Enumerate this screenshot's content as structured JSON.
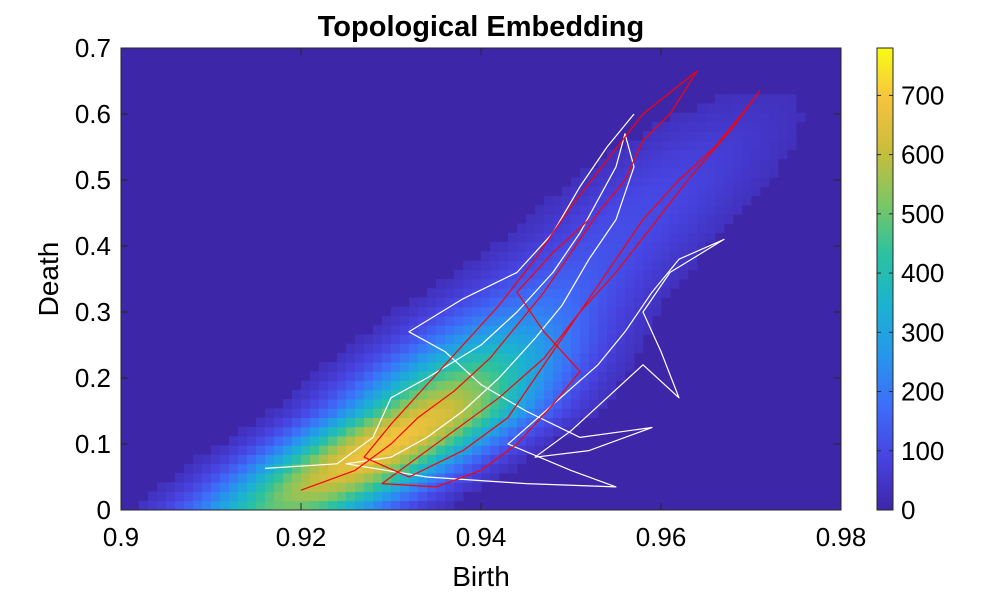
{
  "chart_data": {
    "type": "heatmap",
    "title": "Topological Embedding",
    "xlabel": "Birth",
    "ylabel": "Death",
    "xlim": [
      0.9,
      0.98
    ],
    "ylim": [
      0,
      0.7
    ],
    "x_ticks": [
      "0.9",
      "0.92",
      "0.94",
      "0.96",
      "0.98"
    ],
    "y_ticks": [
      "0",
      "0.1",
      "0.2",
      "0.3",
      "0.4",
      "0.5",
      "0.6",
      "0.7"
    ],
    "colorbar": {
      "limits": [
        0,
        780
      ],
      "ticks": [
        "0",
        "100",
        "200",
        "300",
        "400",
        "500",
        "600",
        "700"
      ],
      "colormap": "parula",
      "colors": [
        "#3e26a8",
        "#4743e0",
        "#3e6cf9",
        "#2796ec",
        "#1bb3d0",
        "#2cc29e",
        "#7ec663",
        "#c9bd3b",
        "#f6c33f",
        "#f9fb15"
      ]
    },
    "density_ridge": {
      "description_points_x": [
        0.925,
        0.935,
        0.945,
        0.955,
        0.965
      ],
      "description_points_y": [
        0.06,
        0.15,
        0.3,
        0.42,
        0.55
      ],
      "peak_value": 780
    },
    "series": [
      {
        "color": "#ffffff",
        "points": [
          [
            0.916,
            0.063
          ],
          [
            0.924,
            0.07
          ],
          [
            0.928,
            0.11
          ],
          [
            0.93,
            0.17
          ],
          [
            0.934,
            0.2
          ],
          [
            0.94,
            0.25
          ],
          [
            0.944,
            0.3
          ],
          [
            0.948,
            0.36
          ],
          [
            0.951,
            0.42
          ],
          [
            0.953,
            0.47
          ],
          [
            0.955,
            0.52
          ],
          [
            0.956,
            0.57
          ],
          [
            0.957,
            0.52
          ],
          [
            0.955,
            0.44
          ],
          [
            0.952,
            0.38
          ],
          [
            0.949,
            0.31
          ],
          [
            0.946,
            0.26
          ],
          [
            0.942,
            0.2
          ],
          [
            0.938,
            0.15
          ],
          [
            0.934,
            0.11
          ],
          [
            0.93,
            0.08
          ],
          [
            0.925,
            0.07
          ],
          [
            0.934,
            0.05
          ],
          [
            0.945,
            0.04
          ],
          [
            0.955,
            0.035
          ],
          [
            0.95,
            0.06
          ],
          [
            0.943,
            0.1
          ],
          [
            0.948,
            0.16
          ],
          [
            0.953,
            0.22
          ],
          [
            0.956,
            0.27
          ],
          [
            0.959,
            0.33
          ],
          [
            0.962,
            0.38
          ],
          [
            0.967,
            0.41
          ],
          [
            0.961,
            0.36
          ],
          [
            0.958,
            0.3
          ],
          [
            0.96,
            0.24
          ],
          [
            0.962,
            0.17
          ],
          [
            0.958,
            0.22
          ],
          [
            0.954,
            0.17
          ],
          [
            0.95,
            0.12
          ],
          [
            0.946,
            0.08
          ],
          [
            0.952,
            0.09
          ],
          [
            0.959,
            0.125
          ],
          [
            0.951,
            0.11
          ],
          [
            0.945,
            0.15
          ],
          [
            0.94,
            0.19
          ],
          [
            0.936,
            0.24
          ],
          [
            0.932,
            0.27
          ],
          [
            0.938,
            0.32
          ],
          [
            0.944,
            0.36
          ],
          [
            0.948,
            0.42
          ],
          [
            0.951,
            0.49
          ],
          [
            0.954,
            0.55
          ],
          [
            0.957,
            0.6
          ]
        ]
      },
      {
        "color": "#ff0000",
        "points": [
          [
            0.92,
            0.03
          ],
          [
            0.926,
            0.06
          ],
          [
            0.93,
            0.1
          ],
          [
            0.933,
            0.14
          ],
          [
            0.937,
            0.18
          ],
          [
            0.941,
            0.23
          ],
          [
            0.944,
            0.28
          ],
          [
            0.947,
            0.33
          ],
          [
            0.95,
            0.39
          ],
          [
            0.953,
            0.45
          ],
          [
            0.956,
            0.5
          ],
          [
            0.958,
            0.56
          ],
          [
            0.961,
            0.6
          ],
          [
            0.964,
            0.665
          ],
          [
            0.958,
            0.6
          ],
          [
            0.954,
            0.53
          ],
          [
            0.95,
            0.46
          ],
          [
            0.946,
            0.38
          ],
          [
            0.942,
            0.31
          ],
          [
            0.938,
            0.25
          ],
          [
            0.934,
            0.19
          ],
          [
            0.93,
            0.13
          ],
          [
            0.927,
            0.08
          ],
          [
            0.932,
            0.05
          ],
          [
            0.938,
            0.09
          ],
          [
            0.943,
            0.14
          ],
          [
            0.946,
            0.2
          ],
          [
            0.949,
            0.26
          ],
          [
            0.952,
            0.32
          ],
          [
            0.955,
            0.38
          ],
          [
            0.958,
            0.44
          ],
          [
            0.962,
            0.5
          ],
          [
            0.966,
            0.55
          ],
          [
            0.969,
            0.6
          ],
          [
            0.971,
            0.635
          ],
          [
            0.968,
            0.58
          ],
          [
            0.963,
            0.5
          ],
          [
            0.959,
            0.43
          ],
          [
            0.955,
            0.36
          ],
          [
            0.951,
            0.3
          ],
          [
            0.947,
            0.23
          ],
          [
            0.942,
            0.17
          ],
          [
            0.937,
            0.12
          ],
          [
            0.933,
            0.08
          ],
          [
            0.929,
            0.04
          ],
          [
            0.935,
            0.035
          ],
          [
            0.94,
            0.06
          ],
          [
            0.944,
            0.1
          ],
          [
            0.948,
            0.16
          ],
          [
            0.951,
            0.21
          ],
          [
            0.947,
            0.27
          ],
          [
            0.944,
            0.33
          ],
          [
            0.948,
            0.39
          ],
          [
            0.952,
            0.44
          ]
        ]
      }
    ]
  }
}
